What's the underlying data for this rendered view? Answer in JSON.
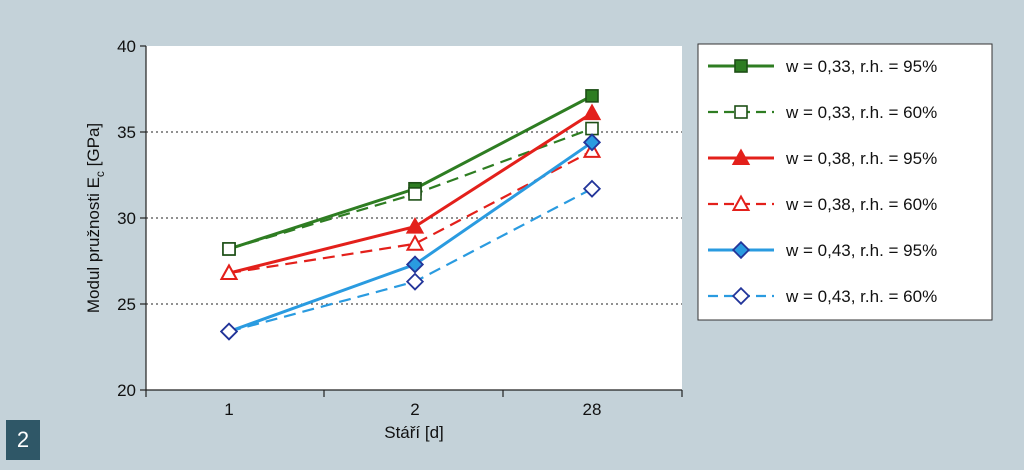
{
  "figure_number": "2",
  "chart_data": {
    "type": "line",
    "categories": [
      "1",
      "2",
      "28"
    ],
    "ylim": [
      20,
      40
    ],
    "yticks": [
      20,
      25,
      30,
      35,
      40
    ],
    "xlabel": "Stáří [d]",
    "ylabel_main": "Modul pružnosti E",
    "ylabel_sub": "c",
    "ylabel_unit": " [GPa]",
    "grid": "horizontal dotted at 25, 30, 35",
    "legend_position": "right",
    "series": [
      {
        "name": "w = 0,33, r.h. = 95%",
        "values": [
          28.2,
          31.7,
          37.1
        ],
        "color": "#2e7d22",
        "dash": "solid",
        "marker": "square",
        "filled": true
      },
      {
        "name": "w = 0,33, r.h. = 60%",
        "values": [
          28.2,
          31.4,
          35.2
        ],
        "color": "#2e7d22",
        "dash": "dashed",
        "marker": "square",
        "filled": false
      },
      {
        "name": "w = 0,38, r.h. = 95%",
        "values": [
          26.8,
          29.5,
          36.1
        ],
        "color": "#e3201b",
        "dash": "solid",
        "marker": "triangle",
        "filled": true
      },
      {
        "name": "w = 0,38, r.h. = 60%",
        "values": [
          26.8,
          28.5,
          33.9
        ],
        "color": "#e3201b",
        "dash": "dashed",
        "marker": "triangle",
        "filled": false
      },
      {
        "name": "w = 0,43, r.h. = 95%",
        "values": [
          23.4,
          27.3,
          34.4
        ],
        "color": "#2a9be0",
        "dash": "solid",
        "marker": "diamond",
        "filled": true
      },
      {
        "name": "w = 0,43, r.h. = 60%",
        "values": [
          23.4,
          26.3,
          31.7
        ],
        "color": "#2a9be0",
        "dash": "dashed",
        "marker": "diamond",
        "filled": false
      }
    ]
  }
}
